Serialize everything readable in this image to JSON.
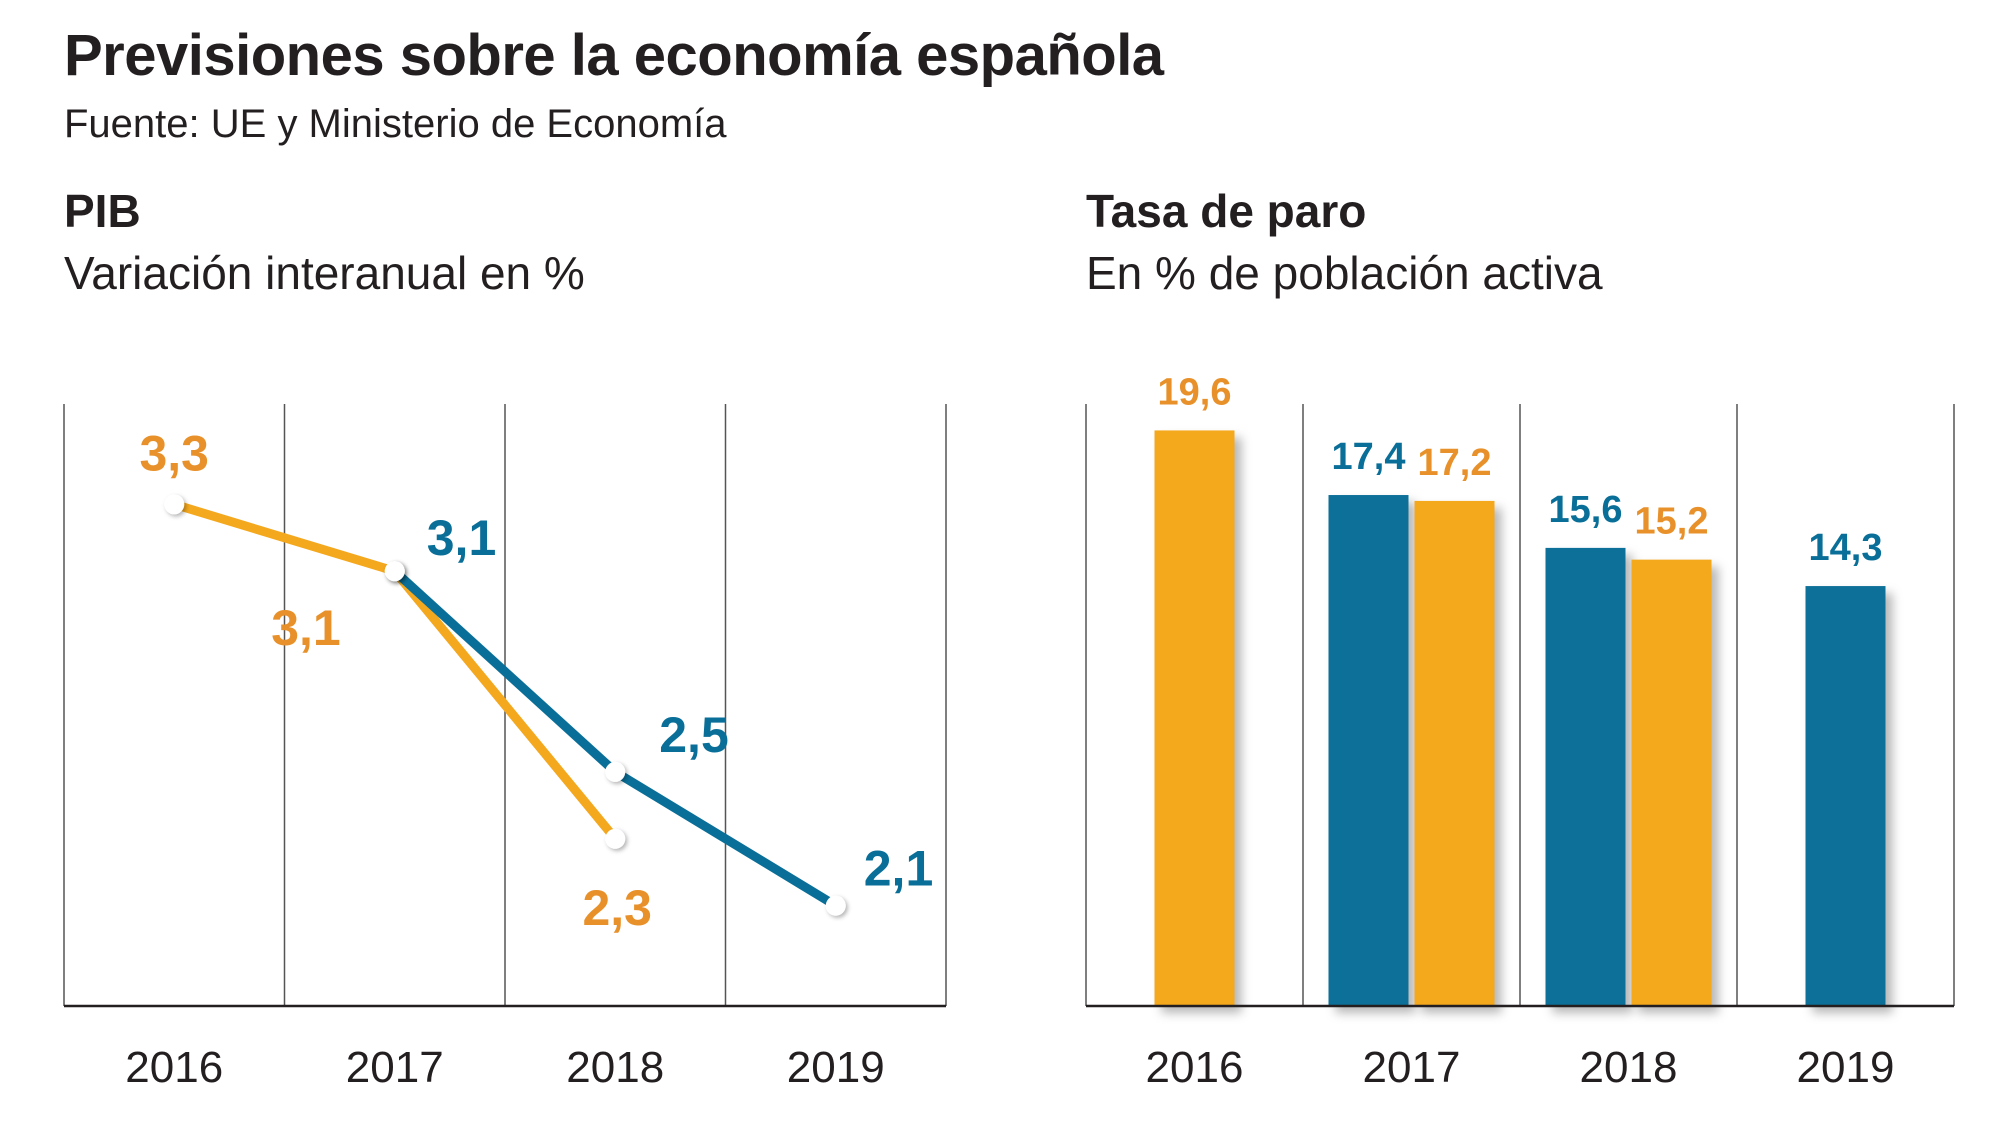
{
  "header": {
    "title": "Previsiones sobre la economía española",
    "source": "Fuente: UE y Ministerio de Economía"
  },
  "colors": {
    "blue": "#0a6f98",
    "orange": "#f4a81e",
    "orange_label": "#e8912a",
    "axis": "#231f20",
    "grid": "#555555"
  },
  "chart_data": [
    {
      "type": "line",
      "title": "PIB",
      "subtitle": "Variación interanual en %",
      "categories": [
        "2016",
        "2017",
        "2018",
        "2019"
      ],
      "ylim": [
        1.8,
        3.6
      ],
      "grid": "vertical",
      "series": [
        {
          "color": "orange",
          "values": [
            3.3,
            3.1,
            2.3,
            null
          ],
          "labels": [
            "3,3",
            "3,1",
            "2,3",
            ""
          ]
        },
        {
          "color": "blue",
          "values": [
            null,
            3.1,
            2.5,
            2.1
          ],
          "labels": [
            "",
            "3,1",
            "2,5",
            "2,1"
          ]
        }
      ]
    },
    {
      "type": "bar",
      "title": "Tasa de paro",
      "subtitle": "En % de población activa",
      "categories": [
        "2016",
        "2017",
        "2018",
        "2019"
      ],
      "ylim": [
        0,
        20.5
      ],
      "grid": "vertical",
      "series": [
        {
          "color": "blue",
          "values": [
            null,
            17.4,
            15.6,
            14.3
          ],
          "labels": [
            "",
            "17,4",
            "15,6",
            "14,3"
          ]
        },
        {
          "color": "orange",
          "values": [
            19.6,
            17.2,
            15.2,
            null
          ],
          "labels": [
            "19,6",
            "17,2",
            "15,2",
            ""
          ]
        }
      ]
    }
  ]
}
